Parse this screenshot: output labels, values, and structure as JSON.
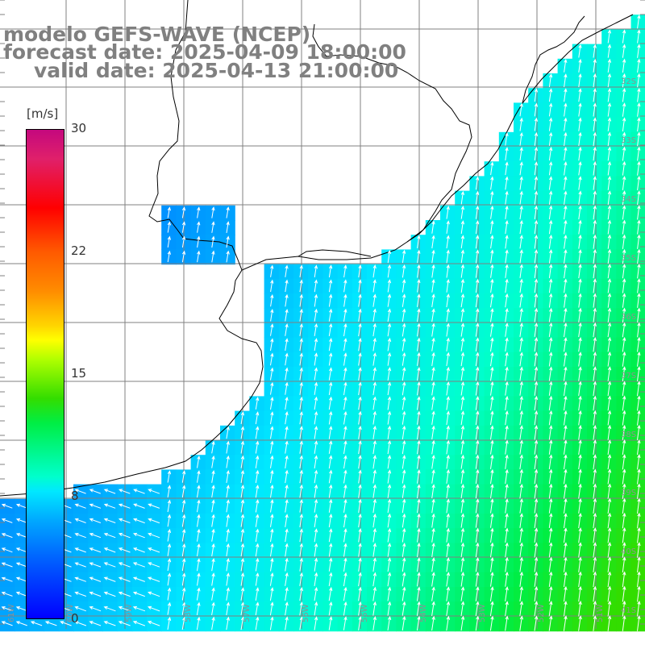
{
  "title": {
    "line1": "modelo GEFS-WAVE (NCEP)",
    "line2": "forecast date: 2025-04-09 18:00:00",
    "line3": "valid date: 2025-04-13 21:00:00"
  },
  "colorbar": {
    "unit": "[m/s]",
    "ticks": [
      "30",
      "22",
      "15",
      "8",
      "0"
    ],
    "range": [
      0,
      30
    ],
    "colors": {
      "max": "#c4087e",
      "red": "#ff0000",
      "orange": "#ff8c00",
      "yellow": "#ffff00",
      "green": "#33dd00",
      "cyan": "#00ffcc",
      "blue": "#0060ff",
      "min": "#0000ff"
    }
  },
  "map": {
    "latitude_labels": [
      "32S",
      "33S",
      "34S",
      "35S",
      "36S",
      "37S",
      "38S",
      "39S",
      "40S",
      "41S"
    ],
    "longitude_labels": [
      "61W",
      "60W",
      "59W",
      "58W",
      "57W",
      "56W",
      "55W",
      "54W",
      "53W",
      "52W",
      "51W"
    ],
    "field": "wind speed and direction",
    "land_color": "#ffffff",
    "coast_color": "#000000",
    "grid_color": "#808080",
    "arrow_color": "#ffffff"
  }
}
